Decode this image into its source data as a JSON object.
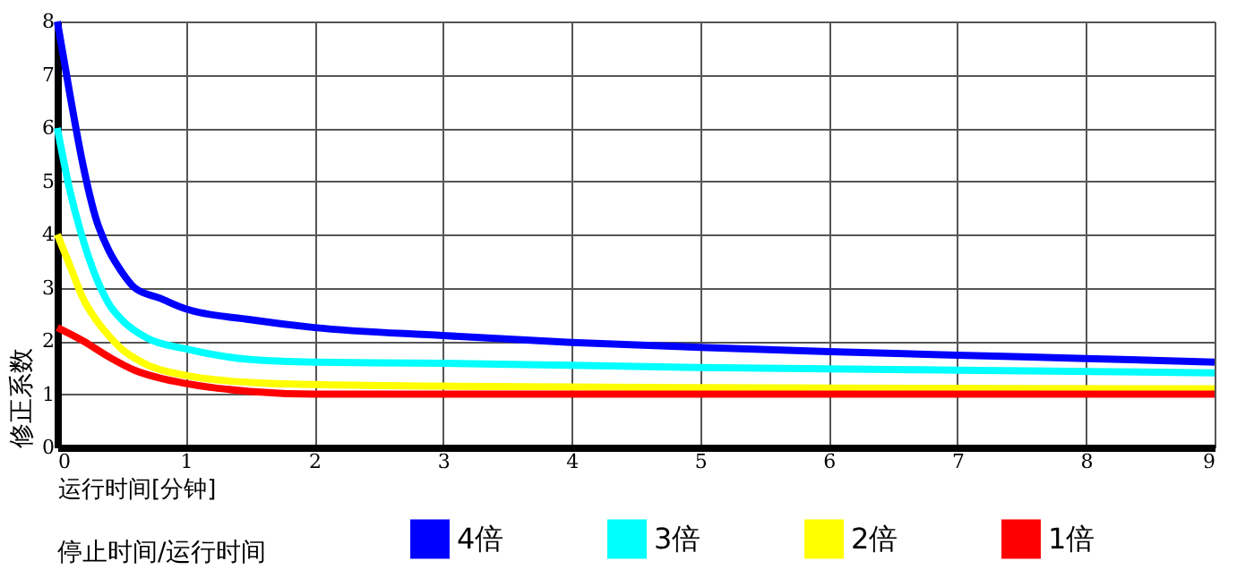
{
  "chart_data": {
    "type": "line",
    "xlabel": "运行时间[分钟]",
    "ylabel": "修正系数",
    "legend_title": "停止时间/运行时间",
    "xlim": [
      0,
      9
    ],
    "ylim": [
      0,
      8
    ],
    "xticks": [
      0,
      1,
      2,
      3,
      4,
      5,
      6,
      7,
      8,
      9
    ],
    "yticks": [
      0,
      1,
      2,
      3,
      4,
      5,
      6,
      7,
      8
    ],
    "grid": true,
    "legend": "bottom",
    "series": [
      {
        "name": "4倍",
        "color": "#0000ff",
        "x": [
          0,
          0.1,
          0.2,
          0.3,
          0.4,
          0.5,
          0.6,
          0.8,
          1,
          1.5,
          2,
          3,
          4,
          5,
          6,
          7,
          8,
          9
        ],
        "values": [
          8,
          6.6,
          5.3,
          4.3,
          3.7,
          3.3,
          3.0,
          2.8,
          2.6,
          2.4,
          2.25,
          2.1,
          1.97,
          1.88,
          1.8,
          1.73,
          1.67,
          1.6
        ]
      },
      {
        "name": "3倍",
        "color": "#00ffff",
        "x": [
          0,
          0.1,
          0.2,
          0.3,
          0.4,
          0.5,
          0.7,
          1,
          1.5,
          2,
          3,
          5,
          7,
          9
        ],
        "values": [
          6,
          4.8,
          3.9,
          3.2,
          2.7,
          2.4,
          2.05,
          1.85,
          1.65,
          1.6,
          1.58,
          1.5,
          1.45,
          1.4
        ]
      },
      {
        "name": "2倍",
        "color": "#ffff00",
        "x": [
          0,
          0.1,
          0.2,
          0.3,
          0.4,
          0.5,
          0.7,
          1,
          1.5,
          2,
          3,
          5,
          9
        ],
        "values": [
          4,
          3.4,
          2.8,
          2.4,
          2.1,
          1.85,
          1.55,
          1.35,
          1.22,
          1.18,
          1.15,
          1.12,
          1.1
        ]
      },
      {
        "name": "1倍",
        "color": "#ff0000",
        "x": [
          0,
          0.2,
          0.4,
          0.6,
          0.8,
          1,
          1.5,
          2,
          9
        ],
        "values": [
          2.25,
          2.0,
          1.7,
          1.45,
          1.3,
          1.2,
          1.05,
          1.0,
          1.0
        ]
      }
    ]
  }
}
